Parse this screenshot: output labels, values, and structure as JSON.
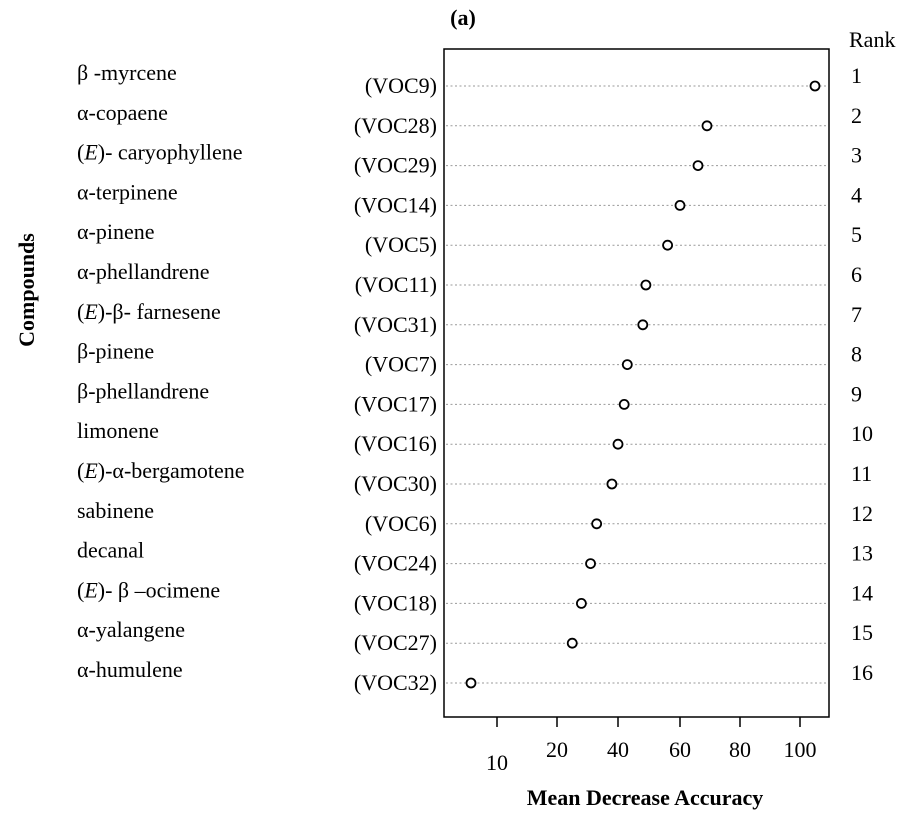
{
  "chart_data": {
    "type": "scatter",
    "panel_label": "(a)",
    "title": "",
    "xlabel": "Mean Decrease Accuracy",
    "ylabel": "Compounds",
    "rank_header": "Rank",
    "x_ticks": [
      "10",
      "20",
      "40",
      "60",
      "80",
      "100"
    ],
    "grid": "dotted horizontal lines per row",
    "rows": [
      {
        "rank": "1",
        "compound": "β -myrcene",
        "code": "(VOC9)",
        "value": 105
      },
      {
        "rank": "2",
        "compound": "α-copaene",
        "code": "(VOC28)",
        "value": 69
      },
      {
        "rank": "3",
        "compound": "(E)- caryophyllene",
        "code": "(VOC29)",
        "value": 66
      },
      {
        "rank": "4",
        "compound": "α-terpinene",
        "code": "(VOC14)",
        "value": 60
      },
      {
        "rank": "5",
        "compound": "α-pinene",
        "code": "(VOC5)",
        "value": 56
      },
      {
        "rank": "6",
        "compound": "α-phellandrene",
        "code": "(VOC11)",
        "value": 49
      },
      {
        "rank": "7",
        "compound": "(E)-β- farnesene",
        "code": "(VOC31)",
        "value": 48
      },
      {
        "rank": "8",
        "compound": "β-pinene",
        "code": "(VOC7)",
        "value": 43
      },
      {
        "rank": "9",
        "compound": "β-phellandrene",
        "code": "(VOC17)",
        "value": 42
      },
      {
        "rank": "10",
        "compound": "limonene",
        "code": "(VOC16)",
        "value": 40
      },
      {
        "rank": "11",
        "compound": " (E)-α-bergamotene",
        "code": "(VOC30)",
        "value": 38
      },
      {
        "rank": "12",
        "compound": "sabinene",
        "code": "(VOC6)",
        "value": 33
      },
      {
        "rank": "13",
        "compound": "decanal",
        "code": "(VOC24)",
        "value": 31
      },
      {
        "rank": "14",
        "compound": " (E)- β –ocimene",
        "code": "(VOC18)",
        "value": 28
      },
      {
        "rank": "15",
        "compound": " α-yalangene",
        "code": "(VOC27)",
        "value": 25
      },
      {
        "rank": "16",
        "compound": " α-humulene",
        "code": "(VOC32)",
        "value": 5
      }
    ]
  }
}
